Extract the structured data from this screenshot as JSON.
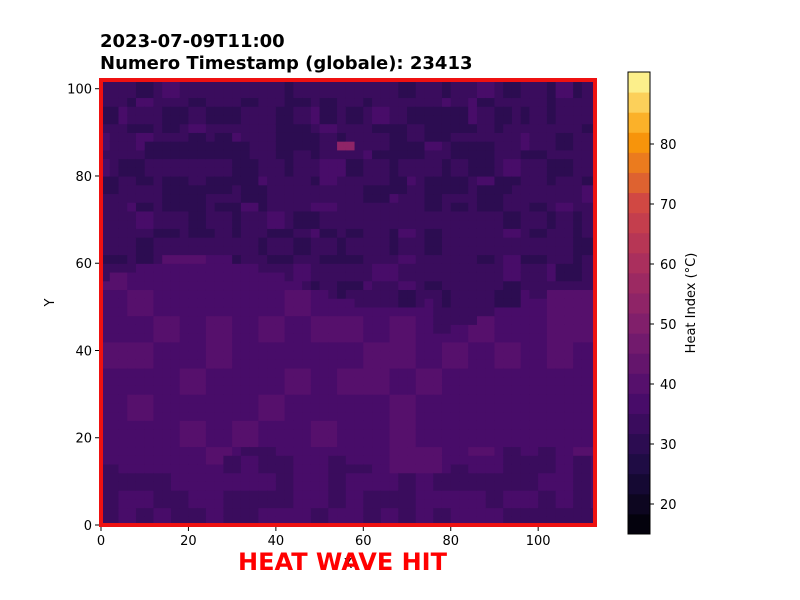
{
  "figure": {
    "title_line1": "2023-07-09T11:00",
    "title_line2": "Numero Timestamp (globale): 23413",
    "alert_text": "HEAT WAVE HIT",
    "alert_color": "#ff0000",
    "frame_color": "#ee1111"
  },
  "chart_data": {
    "type": "heatmap",
    "title": "2023-07-09T11:00\nNumero Timestamp (globale): 23413",
    "xlabel": "X",
    "ylabel": "Y",
    "xlim": [
      0,
      113
    ],
    "ylim": [
      0,
      102
    ],
    "xticks": [
      0,
      20,
      40,
      60,
      80,
      100
    ],
    "yticks": [
      0,
      20,
      40,
      60,
      80,
      100
    ],
    "grid": false,
    "colormap": "inferno",
    "colorbar": {
      "label": "Heat Index (°C)",
      "range": [
        15,
        92
      ],
      "ticks": [
        20,
        30,
        40,
        50,
        60,
        70,
        80
      ],
      "levels": 23,
      "placement": "right"
    },
    "value_regions": [
      {
        "region": "upper half (y > ~55)",
        "approx_value": 33
      },
      {
        "region": "dark spots top-left/center (y 75-95)",
        "approx_value": 29
      },
      {
        "region": "middle band (y 15-55)",
        "approx_value": 38
      },
      {
        "region": "lower band (y 0-15)",
        "approx_value": 35
      },
      {
        "region": "hot spot near (56, 87)",
        "approx_value": 55
      }
    ],
    "hotspot": {
      "x": 56,
      "y": 87,
      "value": 55
    }
  }
}
